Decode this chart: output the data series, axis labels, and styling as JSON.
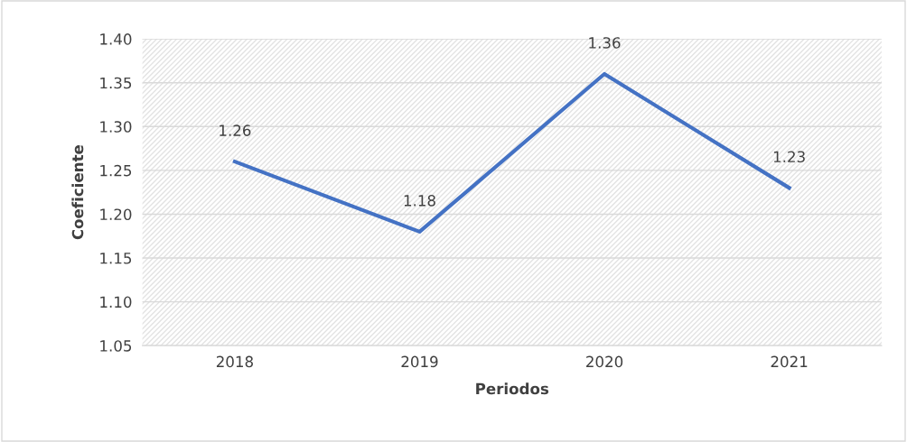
{
  "chart_data": {
    "type": "line",
    "xlabel": "Periodos",
    "ylabel": "Coeficiente",
    "categories": [
      "2018",
      "2019",
      "2020",
      "2021"
    ],
    "series": [
      {
        "color": "#4472c4",
        "values": [
          1.26,
          1.18,
          1.36,
          1.23
        ]
      }
    ],
    "ylim": [
      1.05,
      1.4
    ],
    "yticks": [
      "1.05",
      "1.10",
      "1.15",
      "1.20",
      "1.25",
      "1.30",
      "1.35",
      "1.40"
    ],
    "grid": "y",
    "data_labels": true,
    "marker": "none",
    "line_style": "solid",
    "legend": false
  }
}
